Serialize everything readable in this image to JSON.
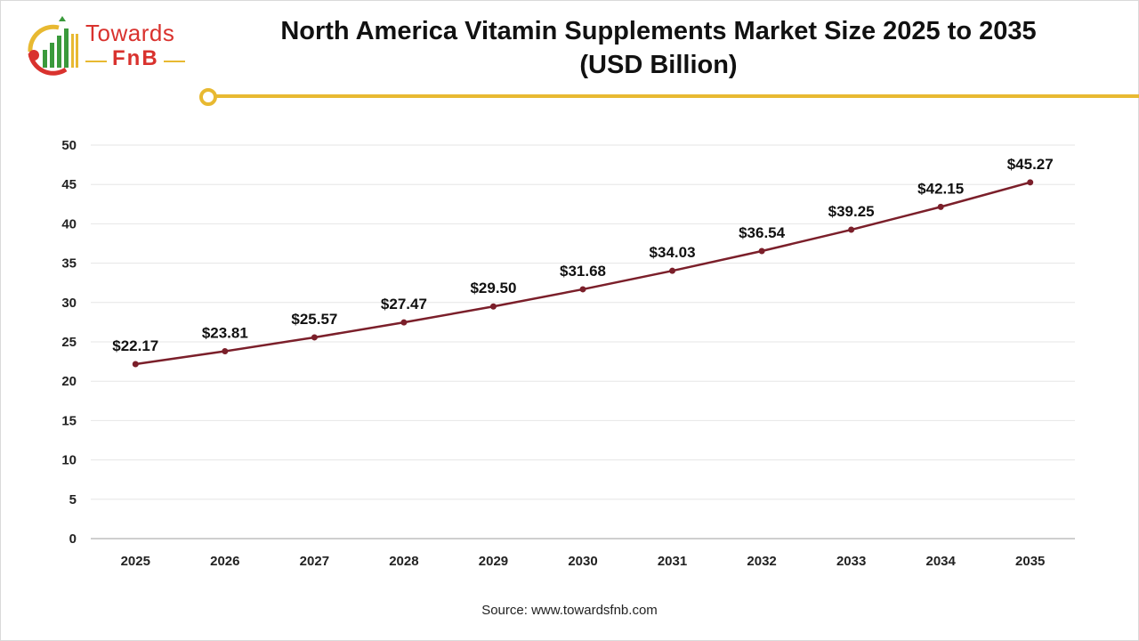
{
  "brand": {
    "name_line1": "Towards",
    "name_line2": "FnB",
    "colors": {
      "primary": "#d9322e",
      "accent": "#e8b931",
      "green": "#3a9a3c"
    }
  },
  "chart_data": {
    "type": "line",
    "title": "North America Vitamin Supplements Market Size 2025 to 2035 (USD Billion)",
    "title_line1": "North America Vitamin Supplements Market Size 2025 to 2035",
    "title_line2": "(USD Billion)",
    "x": [
      "2025",
      "2026",
      "2027",
      "2028",
      "2029",
      "2030",
      "2031",
      "2032",
      "2033",
      "2034",
      "2035"
    ],
    "series": [
      {
        "values": [
          22.17,
          23.81,
          25.57,
          27.47,
          29.5,
          31.68,
          34.03,
          36.54,
          39.25,
          42.15,
          45.27
        ],
        "labels": [
          "$22.17",
          "$23.81",
          "$25.57",
          "$27.47",
          "$29.50",
          "$31.68",
          "$34.03",
          "$36.54",
          "$39.25",
          "$42.15",
          "$45.27"
        ],
        "color": "#7b1f2a"
      }
    ],
    "ylim": [
      0,
      50
    ],
    "yticks": [
      0,
      5,
      10,
      15,
      20,
      25,
      30,
      35,
      40,
      45,
      50
    ],
    "xlabel": "",
    "ylabel": "",
    "grid": true,
    "legend": "none"
  },
  "source": "Source: www.towardsfnb.com"
}
